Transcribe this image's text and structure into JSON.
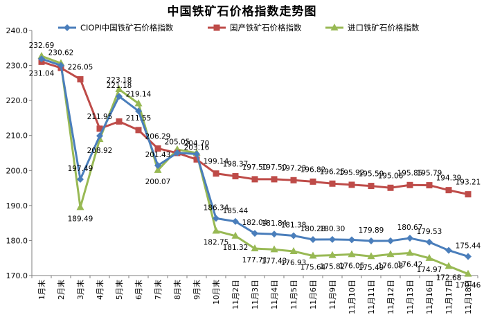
{
  "chart_data": {
    "type": "line",
    "title": "中国铁矿石价格指数走势图",
    "xlabel": "",
    "ylabel": "",
    "ylim": [
      170,
      240
    ],
    "yticks": [
      "170.0",
      "180.0",
      "190.0",
      "200.0",
      "210.0",
      "220.0",
      "230.0",
      "240.0"
    ],
    "grid": false,
    "legend_position": "top",
    "categories": [
      "1月末",
      "2月末",
      "3月末",
      "4月末",
      "5月末",
      "6月末",
      "7月末",
      "8月末",
      "9月末",
      "10月末",
      "11月2日",
      "11月3日",
      "11月4日",
      "11月5日",
      "11月6日",
      "11月9日",
      "11月10日",
      "11月11日",
      "11月12日",
      "11月13日",
      "11月16日",
      "11月17日",
      "11月18日"
    ],
    "series": [
      {
        "name": "CIOPI中国铁矿石价格指数",
        "color": "#4A7EBB",
        "marker": "diamond",
        "values": [
          231.9,
          230.0,
          197.49,
          209.9,
          221.18,
          217.0,
          201.43,
          205.05,
          204.7,
          186.34,
          185.44,
          182.04,
          181.84,
          181.38,
          180.28,
          180.3,
          180.2,
          179.89,
          179.9,
          180.67,
          179.53,
          177.2,
          175.44
        ],
        "labels": [
          "",
          "",
          "197.49",
          "",
          "221.18",
          "",
          "201.43",
          "205.05",
          "204.70",
          "186.34",
          "185.44",
          "182.04",
          "181.84",
          "181.38",
          "180.28",
          "180.30",
          "",
          "179.89",
          "",
          "180.67",
          "179.53",
          "",
          "175.44"
        ]
      },
      {
        "name": "国产铁矿石价格指数",
        "color": "#BE4B48",
        "marker": "square",
        "values": [
          231.04,
          229.3,
          226.05,
          211.95,
          214.0,
          211.55,
          206.29,
          205.0,
          203.16,
          199.14,
          198.37,
          197.5,
          197.5,
          197.23,
          196.82,
          196.25,
          195.92,
          195.59,
          195.06,
          195.85,
          195.79,
          194.39,
          193.21
        ],
        "labels": [
          "231.04",
          "",
          "226.05",
          "211.95",
          "",
          "211.55",
          "206.29",
          "",
          "203.16",
          "199.14",
          "198.37",
          "197.50",
          "197.50",
          "197.23",
          "196.82",
          "196.25",
          "195.92",
          "195.59",
          "195.06",
          "195.85",
          "195.79",
          "194.39",
          "193.21"
        ]
      },
      {
        "name": "进口铁矿石价格指数",
        "color": "#98B954",
        "marker": "triangle",
        "values": [
          232.69,
          230.62,
          189.49,
          208.92,
          223.18,
          219.14,
          200.07,
          206.0,
          205.0,
          182.75,
          181.32,
          177.71,
          177.43,
          176.93,
          175.64,
          175.82,
          176.05,
          175.49,
          176.08,
          176.42,
          174.97,
          172.68,
          170.46
        ],
        "labels": [
          "232.69",
          "230.62",
          "189.49",
          "208.92",
          "223.18",
          "219.14",
          "200.07",
          "",
          "",
          "182.75",
          "181.32",
          "177.71",
          "177.43",
          "176.93",
          "175.64",
          "175.82",
          "176.05",
          "175.49",
          "176.08",
          "176.42",
          "174.97",
          "172.68",
          "170.46"
        ]
      }
    ]
  }
}
